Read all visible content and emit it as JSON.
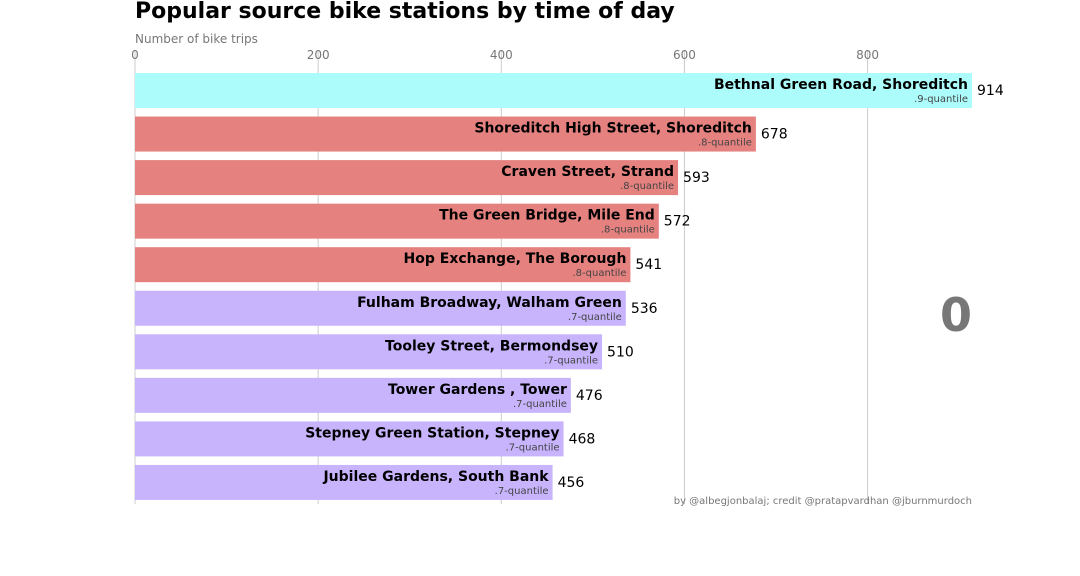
{
  "chart_data": {
    "type": "bar",
    "orientation": "horizontal",
    "title": "Popular source bike stations by time of day",
    "xlabel": "Number of bike trips",
    "xlim": [
      0,
      914
    ],
    "xticks": [
      0,
      200,
      400,
      600,
      800
    ],
    "grid": true,
    "time_label": "0",
    "credit": "by @albegjonbalaj; credit @pratapvardhan @jburnmurdoch",
    "quantile_colors": {
      ".9-quantile": "#adfcfc",
      ".8-quantile": "#e58280",
      ".7-quantile": "#c7b4fc"
    },
    "bars": [
      {
        "category": "Bethnal Green Road, Shoreditch",
        "value": 914,
        "quantile": ".9-quantile"
      },
      {
        "category": "Shoreditch High Street, Shoreditch",
        "value": 678,
        "quantile": ".8-quantile"
      },
      {
        "category": "Craven Street, Strand",
        "value": 593,
        "quantile": ".8-quantile"
      },
      {
        "category": "The Green Bridge, Mile End",
        "value": 572,
        "quantile": ".8-quantile"
      },
      {
        "category": "Hop Exchange, The Borough",
        "value": 541,
        "quantile": ".8-quantile"
      },
      {
        "category": "Fulham Broadway, Walham Green",
        "value": 536,
        "quantile": ".7-quantile"
      },
      {
        "category": "Tooley Street, Bermondsey",
        "value": 510,
        "quantile": ".7-quantile"
      },
      {
        "category": "Tower Gardens , Tower",
        "value": 476,
        "quantile": ".7-quantile"
      },
      {
        "category": "Stepney Green Station, Stepney",
        "value": 468,
        "quantile": ".7-quantile"
      },
      {
        "category": "Jubilee Gardens, South Bank",
        "value": 456,
        "quantile": ".7-quantile"
      }
    ]
  }
}
